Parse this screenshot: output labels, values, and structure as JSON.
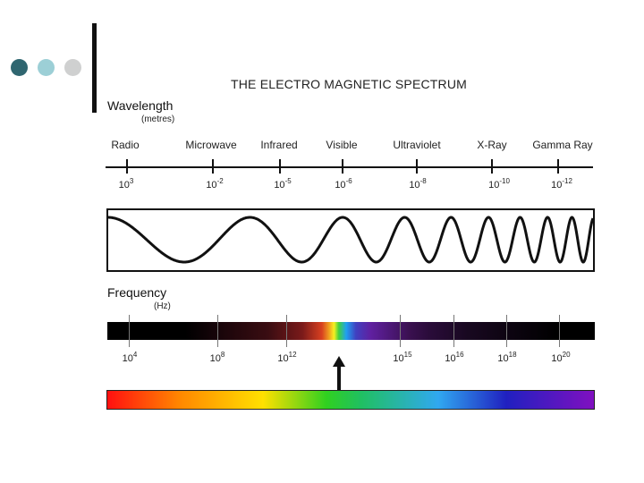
{
  "title": "THE ELECTRO MAGNETIC SPECTRUM",
  "wavelength": {
    "label": "Wavelength",
    "unit": "(metres)",
    "bands": [
      {
        "name": "Radio",
        "base": "10",
        "exp": "3"
      },
      {
        "name": "Microwave",
        "base": "10",
        "exp": "-2"
      },
      {
        "name": "Infrared",
        "base": "10",
        "exp": "-5"
      },
      {
        "name": "Visible",
        "base": "10",
        "exp": "-6"
      },
      {
        "name": "Ultraviolet",
        "base": "10",
        "exp": "-8"
      },
      {
        "name": "X-Ray",
        "base": "10",
        "exp": "-10"
      },
      {
        "name": "Gamma Ray",
        "base": "10",
        "exp": "-12"
      }
    ]
  },
  "frequency": {
    "label": "Frequency",
    "unit": "(Hz)",
    "values": [
      {
        "base": "10",
        "exp": "4"
      },
      {
        "base": "10",
        "exp": "8"
      },
      {
        "base": "10",
        "exp": "12"
      },
      {
        "base": "10",
        "exp": "15"
      },
      {
        "base": "10",
        "exp": "16"
      },
      {
        "base": "10",
        "exp": "18"
      },
      {
        "base": "10",
        "exp": "20"
      }
    ]
  },
  "colors": {
    "dot_dark": "#2f6670",
    "dot_light": "#9ccfd6",
    "dot_grey": "#cfd0d0"
  }
}
